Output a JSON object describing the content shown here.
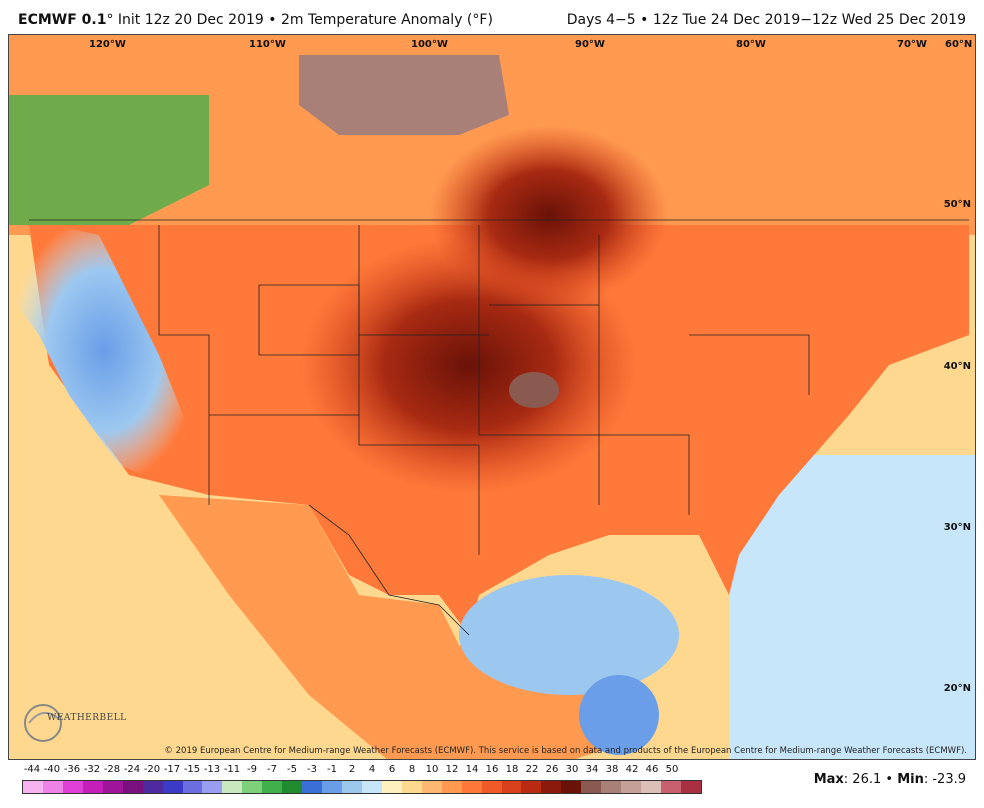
{
  "header": {
    "model": "ECMWF 0.1",
    "degree_sign": "°",
    "init_text": "Init 12z 20 Dec 2019 • 2m Temperature Anomaly (°F)",
    "valid_text": "Days 4−5 • 12z Tue 24 Dec 2019−12z Wed 25 Dec 2019"
  },
  "map": {
    "longitude_labels": [
      "120°W",
      "110°W",
      "100°W",
      "90°W",
      "80°W",
      "70°W",
      "60°N"
    ],
    "latitude_labels": [
      "50°N",
      "40°N",
      "30°N",
      "20°N"
    ],
    "credit": "© 2019 European Centre for Medium-range Weather Forecasts (ECMWF). This service is based on data and products of the European Centre for Medium-range Weather Forecasts (ECMWF).",
    "logo_text": "WEATHERBELL"
  },
  "colorbar": {
    "ticks": [
      "-44",
      "-40",
      "-36",
      "-32",
      "-28",
      "-24",
      "-20",
      "-17",
      "-15",
      "-13",
      "-11",
      "-9",
      "-7",
      "-5",
      "-3",
      "-1",
      "2",
      "4",
      "6",
      "8",
      "10",
      "12",
      "14",
      "16",
      "18",
      "22",
      "26",
      "30",
      "34",
      "38",
      "42",
      "46",
      "50"
    ],
    "colors": [
      "#f7b3f0",
      "#ee82e6",
      "#e040d8",
      "#c41fb8",
      "#9e159a",
      "#7a0f7e",
      "#4d2a9e",
      "#3b3bc8",
      "#6a6ee0",
      "#9a9ef0",
      "#c8e8c0",
      "#7fd07a",
      "#3fb04a",
      "#1f8a2e",
      "#3a6fd8",
      "#6a9ee8",
      "#9cc8f0",
      "#c8e6fa",
      "#fff0c0",
      "#ffd890",
      "#ffb870",
      "#ff9a50",
      "#ff7a3a",
      "#f05a28",
      "#d8401c",
      "#b82a12",
      "#8c1a0c",
      "#6a1208",
      "#8a5a50",
      "#a88078",
      "#c4a098",
      "#dcc0b8",
      "#c86070",
      "#a83040"
    ]
  },
  "stats": {
    "max_label": "Max",
    "max_value": ": 26.1 • ",
    "min_label": "Min",
    "min_value": ": -23.9"
  }
}
